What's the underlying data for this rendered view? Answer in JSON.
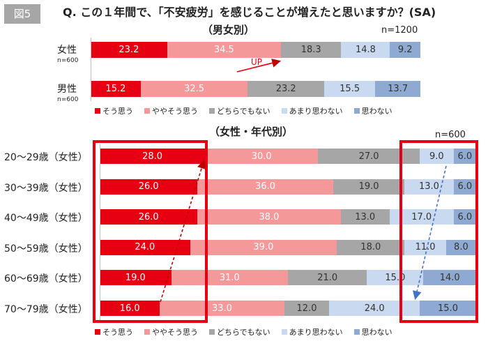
{
  "figure_label": "図5",
  "title": "Q. この１年間で、「不安疲労」を感じることが増えたと思いますか？(SA)",
  "sections": {
    "gender": {
      "subtitle": "（男女別）",
      "n": "n=1200"
    },
    "age": {
      "subtitle": "（女性・年代別）",
      "n": "n=600"
    }
  },
  "legend": [
    "そう思う",
    "ややそう思う",
    "どちらでもない",
    "あまり思わない",
    "思わない"
  ],
  "colors": [
    "#e60012",
    "#f4989a",
    "#a6a6a6",
    "#c9d9ef",
    "#8eaad2"
  ],
  "annotation": "UP",
  "chart_data": [
    {
      "type": "bar",
      "stacked": true,
      "orientation": "horizontal",
      "title": "（男女別）",
      "n": "n=1200",
      "categories": [
        "女性",
        "男性"
      ],
      "category_n": [
        "n=600",
        "n=600"
      ],
      "series": [
        {
          "name": "そう思う",
          "values": [
            23.2,
            15.2
          ]
        },
        {
          "name": "ややそう思う",
          "values": [
            34.5,
            32.5
          ]
        },
        {
          "name": "どちらでもない",
          "values": [
            18.3,
            23.2
          ]
        },
        {
          "name": "あまり思わない",
          "values": [
            14.8,
            15.5
          ]
        },
        {
          "name": "思わない",
          "values": [
            9.2,
            13.7
          ]
        }
      ],
      "annotations": [
        "UP"
      ]
    },
    {
      "type": "bar",
      "stacked": true,
      "orientation": "horizontal",
      "title": "（女性・年代別）",
      "n": "n=600",
      "categories": [
        "20～29歳（女性）",
        "30～39歳（女性）",
        "40～49歳（女性）",
        "50～59歳（女性）",
        "60～69歳（女性）",
        "70～79歳（女性）"
      ],
      "series": [
        {
          "name": "そう思う",
          "values": [
            28.0,
            26.0,
            26.0,
            24.0,
            19.0,
            16.0
          ]
        },
        {
          "name": "ややそう思う",
          "values": [
            30.0,
            36.0,
            38.0,
            39.0,
            31.0,
            33.0
          ]
        },
        {
          "name": "どちらでもない",
          "values": [
            27.0,
            19.0,
            13.0,
            18.0,
            21.0,
            12.0
          ]
        },
        {
          "name": "あまり思わない",
          "values": [
            9.0,
            13.0,
            17.0,
            11.0,
            15.0,
            24.0
          ]
        },
        {
          "name": "思わない",
          "values": [
            6.0,
            6.0,
            6.0,
            8.0,
            14.0,
            15.0
          ]
        }
      ]
    }
  ]
}
